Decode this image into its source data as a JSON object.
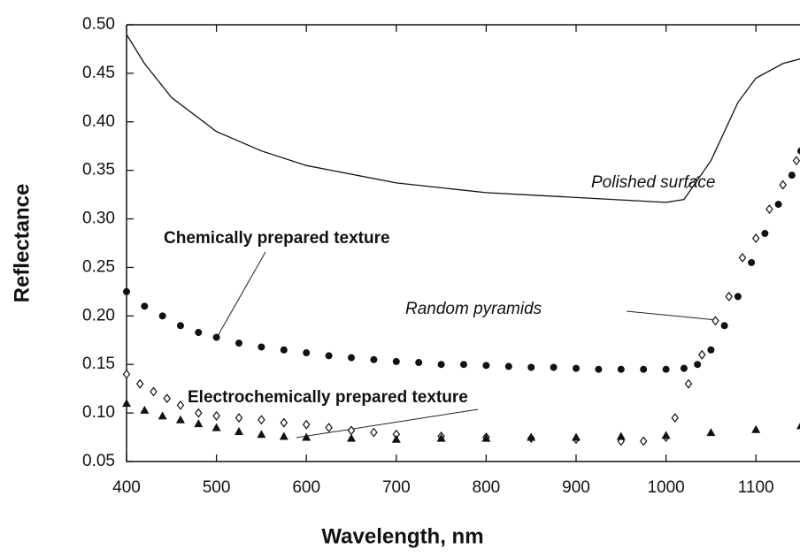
{
  "chart_data": {
    "type": "line",
    "x_label": "Wavelength, nm",
    "y_label": "Reflectance",
    "xlim": [
      400,
      1150
    ],
    "xticks": [
      400,
      500,
      600,
      700,
      800,
      900,
      1000,
      1100
    ],
    "ylim": [
      0.05,
      0.5
    ],
    "yticks": [
      0.05,
      {
        "value": 0.1,
        "label": "0.10"
      },
      0.15,
      {
        "value": 0.2,
        "label": "0.20"
      },
      0.25,
      {
        "value": 0.3,
        "label": "0.30"
      },
      0.35,
      {
        "value": 0.4,
        "label": "0.40"
      },
      0.45,
      {
        "value": 0.5,
        "label": "0.50"
      }
    ],
    "series": [
      {
        "name": "Polished surface",
        "color": "#111111",
        "marker": "none",
        "x": [
          400,
          420,
          450,
          500,
          550,
          600,
          700,
          800,
          900,
          1000,
          1020,
          1050,
          1080,
          1100,
          1130,
          1150
        ],
        "values": [
          0.49,
          0.46,
          0.425,
          0.39,
          0.37,
          0.355,
          0.337,
          0.327,
          0.322,
          0.317,
          0.32,
          0.36,
          0.42,
          0.445,
          0.46,
          0.465
        ]
      },
      {
        "name": "Chemically prepared texture",
        "color": "#111111",
        "marker": "circle",
        "x": [
          400,
          420,
          440,
          460,
          480,
          500,
          525,
          550,
          575,
          600,
          625,
          650,
          675,
          700,
          725,
          750,
          775,
          800,
          825,
          850,
          875,
          900,
          925,
          950,
          975,
          1000,
          1020,
          1035,
          1050,
          1065,
          1080,
          1095,
          1110,
          1125,
          1140,
          1150
        ],
        "values": [
          0.225,
          0.21,
          0.2,
          0.19,
          0.183,
          0.178,
          0.172,
          0.168,
          0.165,
          0.162,
          0.159,
          0.157,
          0.155,
          0.153,
          0.152,
          0.15,
          0.15,
          0.149,
          0.148,
          0.147,
          0.147,
          0.146,
          0.145,
          0.145,
          0.145,
          0.145,
          0.146,
          0.15,
          0.165,
          0.19,
          0.22,
          0.255,
          0.285,
          0.315,
          0.345,
          0.37
        ]
      },
      {
        "name": "Random pyramids",
        "color": "#111111",
        "marker": "diamond",
        "x": [
          400,
          415,
          430,
          445,
          460,
          480,
          500,
          525,
          550,
          575,
          600,
          625,
          650,
          675,
          700,
          750,
          800,
          850,
          900,
          950,
          975,
          1000,
          1010,
          1025,
          1040,
          1055,
          1070,
          1085,
          1100,
          1115,
          1130,
          1145
        ],
        "values": [
          0.14,
          0.13,
          0.122,
          0.115,
          0.108,
          0.1,
          0.097,
          0.095,
          0.093,
          0.09,
          0.088,
          0.085,
          0.082,
          0.08,
          0.078,
          0.076,
          0.075,
          0.074,
          0.073,
          0.071,
          0.071,
          0.075,
          0.095,
          0.13,
          0.16,
          0.195,
          0.22,
          0.26,
          0.28,
          0.31,
          0.335,
          0.36
        ]
      },
      {
        "name": "Electrochemically prepared texture",
        "color": "#111111",
        "marker": "triangle",
        "x": [
          400,
          420,
          440,
          460,
          480,
          500,
          525,
          550,
          575,
          600,
          650,
          700,
          750,
          800,
          850,
          900,
          950,
          1000,
          1050,
          1100,
          1150
        ],
        "values": [
          0.11,
          0.103,
          0.097,
          0.093,
          0.089,
          0.085,
          0.081,
          0.078,
          0.076,
          0.075,
          0.074,
          0.073,
          0.074,
          0.074,
          0.075,
          0.075,
          0.076,
          0.077,
          0.08,
          0.083,
          0.087
        ]
      }
    ]
  }
}
